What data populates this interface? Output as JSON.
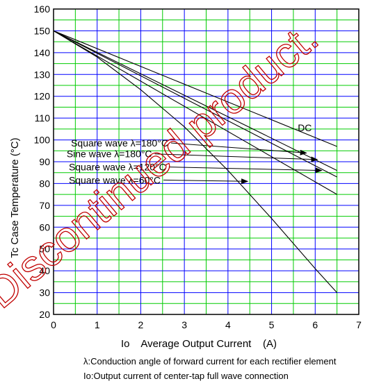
{
  "chart_data": {
    "type": "line",
    "title": "",
    "xlabel": "Io    Average Output Current    (A)",
    "ylabel": "Tc    Case Temperature    (°C)",
    "xlim": [
      0,
      7
    ],
    "ylim": [
      20,
      160
    ],
    "x_ticks": [
      0,
      1,
      2,
      3,
      4,
      5,
      6,
      7
    ],
    "y_ticks": [
      20,
      30,
      40,
      50,
      60,
      70,
      80,
      90,
      100,
      110,
      120,
      130,
      140,
      150,
      160
    ],
    "grid": {
      "major_color": "#0000ff",
      "minor_color": "#00cc00"
    },
    "series": [
      {
        "name": "DC",
        "x": [
          0,
          6.5
        ],
        "y": [
          150,
          97
        ]
      },
      {
        "name": "Square wave  λ=180°C",
        "x": [
          0,
          6.5
        ],
        "y": [
          150,
          86
        ]
      },
      {
        "name": "Sine wave  λ=180°C",
        "x": [
          0,
          6.5
        ],
        "y": [
          150,
          83
        ]
      },
      {
        "name": "Square wave  λ=120°C",
        "x": [
          0,
          6.5
        ],
        "y": [
          150,
          75
        ]
      },
      {
        "name": "Square wave  λ=60°C",
        "x": [
          0,
          1,
          2,
          3,
          4,
          5,
          6,
          6.5
        ],
        "y": [
          150,
          138,
          123,
          106,
          86,
          64,
          41,
          30
        ]
      }
    ],
    "labels": [
      {
        "text": "DC",
        "ref_x": 5.6,
        "ref_y": 104
      },
      {
        "text": "Square wave   λ=180°C",
        "ref_x": 0.4,
        "ref_y": 97,
        "arrow_to": [
          5.8,
          94
        ]
      },
      {
        "text": "Sine wave   λ=180°C",
        "ref_x": 0.3,
        "ref_y": 92,
        "arrow_to": [
          6.05,
          91
        ]
      },
      {
        "text": "Square wave   λ=120°C",
        "ref_x": 0.35,
        "ref_y": 86,
        "arrow_to": [
          6.15,
          86
        ]
      },
      {
        "text": "Square wave   λ=60°C",
        "ref_x": 0.35,
        "ref_y": 80,
        "arrow_to": [
          4.45,
          81
        ]
      }
    ],
    "watermark": "Discontinued product."
  },
  "notes": {
    "lambda_note": "λ:Conduction angle of forward current for each rectifier element",
    "io_note": "Io:Output current of center-tap full wave connection"
  }
}
